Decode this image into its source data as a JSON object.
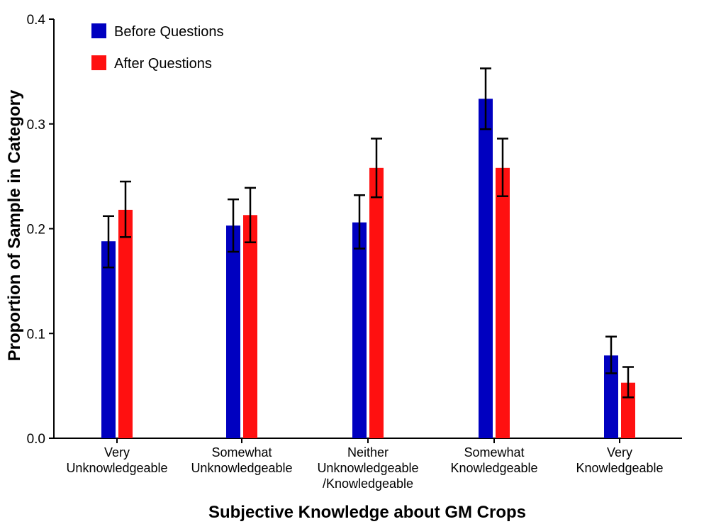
{
  "chart_data": {
    "type": "bar",
    "title": "",
    "xlabel": "Subjective Knowledge about GM Crops",
    "ylabel": "Proportion of Sample in Category",
    "ylim": [
      0,
      0.4
    ],
    "yticks": [
      "0.0",
      "0.1",
      "0.2",
      "0.3",
      "0.4"
    ],
    "grid": false,
    "legend_position": "top-left",
    "categories": [
      [
        "Very",
        "Unknowledgeable"
      ],
      [
        "Somewhat",
        "Unknowledgeable"
      ],
      [
        "Neither",
        "Unknowledgeable",
        "/Knowledgeable"
      ],
      [
        "Somewhat",
        "Knowledgeable"
      ],
      [
        "Very",
        "Knowledgeable"
      ]
    ],
    "series": [
      {
        "name": "Before Questions",
        "color": "#0000c0",
        "values": [
          0.188,
          0.203,
          0.206,
          0.324,
          0.079
        ],
        "err_low": [
          0.163,
          0.178,
          0.181,
          0.295,
          0.062
        ],
        "err_high": [
          0.212,
          0.228,
          0.232,
          0.353,
          0.097
        ]
      },
      {
        "name": "After Questions",
        "color": "#ff1010",
        "values": [
          0.218,
          0.213,
          0.258,
          0.258,
          0.053
        ],
        "err_low": [
          0.192,
          0.187,
          0.23,
          0.231,
          0.039
        ],
        "err_high": [
          0.245,
          0.239,
          0.286,
          0.286,
          0.068
        ]
      }
    ]
  }
}
